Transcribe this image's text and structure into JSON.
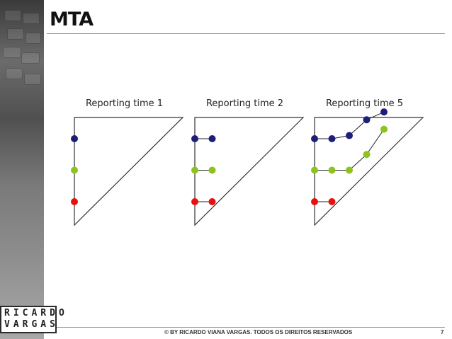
{
  "slide": {
    "title": "MTA"
  },
  "panels": [
    {
      "title": "Reporting time 1",
      "series": [
        {
          "color": "#1c1f7a",
          "points": [
            [
              0,
              0
            ]
          ]
        },
        {
          "color": "#8dc21f",
          "points": [
            [
              0,
              1
            ]
          ]
        },
        {
          "color": "#e80f0f",
          "points": [
            [
              0,
              2
            ]
          ]
        }
      ]
    },
    {
      "title": "Reporting time 2",
      "series": [
        {
          "color": "#1c1f7a",
          "points": [
            [
              0,
              0
            ],
            [
              1,
              0
            ]
          ]
        },
        {
          "color": "#8dc21f",
          "points": [
            [
              0,
              1
            ],
            [
              1,
              1
            ]
          ]
        },
        {
          "color": "#e80f0f",
          "points": [
            [
              0,
              2
            ],
            [
              1,
              2
            ]
          ]
        }
      ]
    },
    {
      "title": "Reporting time 5",
      "series": [
        {
          "color": "#1c1f7a",
          "points": [
            [
              0,
              0
            ],
            [
              1,
              0
            ],
            [
              2,
              -0.1
            ],
            [
              3,
              -0.6
            ],
            [
              4,
              -0.85
            ]
          ]
        },
        {
          "color": "#8dc21f",
          "points": [
            [
              0,
              1
            ],
            [
              1,
              1
            ],
            [
              2,
              1
            ],
            [
              3,
              0.5
            ],
            [
              4,
              -0.3
            ]
          ]
        },
        {
          "color": "#e80f0f",
          "points": [
            [
              0,
              2
            ],
            [
              1,
              2
            ]
          ]
        }
      ]
    }
  ],
  "logo": {
    "line1": "RICARDO",
    "line2": "VARGAS"
  },
  "footer": {
    "copyright": "© BY RICARDO VIANA VARGAS. TODOS OS DIREITOS RESERVADOS",
    "page": "7"
  }
}
